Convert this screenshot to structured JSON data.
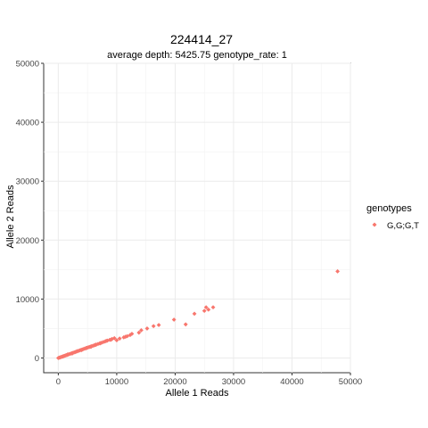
{
  "chart_data": {
    "type": "scatter",
    "title": "224414_27",
    "subtitle": "average depth:  5425.75  genotype_rate:  1",
    "xlabel": "Allele 1 Reads",
    "ylabel": "Allele 2 Reads",
    "xlim": [
      -2500,
      50000
    ],
    "ylim": [
      -2500,
      50000
    ],
    "x_ticks": [
      "0",
      "10000",
      "20000",
      "30000",
      "40000",
      "50000"
    ],
    "y_ticks": [
      "0",
      "10000",
      "20000",
      "30000",
      "40000",
      "50000"
    ],
    "grid": true,
    "legend": {
      "title": "genotypes",
      "position": "right",
      "entries": [
        "G,G;G,T"
      ]
    },
    "series": [
      {
        "name": "G,G;G,T",
        "color": "#F8766D",
        "points": [
          [
            0,
            0
          ],
          [
            150,
            50
          ],
          [
            300,
            100
          ],
          [
            450,
            150
          ],
          [
            600,
            200
          ],
          [
            750,
            260
          ],
          [
            900,
            310
          ],
          [
            1050,
            360
          ],
          [
            1200,
            420
          ],
          [
            1350,
            470
          ],
          [
            1500,
            520
          ],
          [
            1700,
            590
          ],
          [
            1900,
            660
          ],
          [
            2100,
            730
          ],
          [
            2300,
            800
          ],
          [
            2500,
            870
          ],
          [
            2700,
            940
          ],
          [
            2900,
            1010
          ],
          [
            3100,
            1080
          ],
          [
            3300,
            1150
          ],
          [
            3500,
            1230
          ],
          [
            3700,
            1300
          ],
          [
            3900,
            1370
          ],
          [
            4100,
            1440
          ],
          [
            4300,
            1510
          ],
          [
            4500,
            1580
          ],
          [
            4700,
            1650
          ],
          [
            4900,
            1720
          ],
          [
            5100,
            1790
          ],
          [
            5300,
            1860
          ],
          [
            5500,
            1930
          ],
          [
            5700,
            2000
          ],
          [
            5900,
            2060
          ],
          [
            6100,
            2130
          ],
          [
            6300,
            2200
          ],
          [
            6500,
            2270
          ],
          [
            6800,
            2380
          ],
          [
            7100,
            2480
          ],
          [
            7400,
            2590
          ],
          [
            7700,
            2700
          ],
          [
            8000,
            2800
          ],
          [
            8400,
            2950
          ],
          [
            8800,
            3080
          ],
          [
            9200,
            3220
          ],
          [
            9600,
            3360
          ],
          [
            10000,
            3000
          ],
          [
            10500,
            3300
          ],
          [
            11200,
            3500
          ],
          [
            11800,
            3700
          ],
          [
            12300,
            3900
          ],
          [
            12600,
            4100
          ],
          [
            13800,
            4300
          ],
          [
            14200,
            4700
          ],
          [
            15200,
            5000
          ],
          [
            16300,
            5400
          ],
          [
            17200,
            5600
          ],
          [
            19800,
            6500
          ],
          [
            21800,
            5700
          ],
          [
            23300,
            7500
          ],
          [
            25000,
            8000
          ],
          [
            25300,
            8600
          ],
          [
            25700,
            8200
          ],
          [
            26500,
            8600
          ],
          [
            47800,
            14700
          ],
          [
            800,
            250
          ],
          [
            1600,
            600
          ],
          [
            2400,
            780
          ],
          [
            3200,
            1150
          ],
          [
            4000,
            1350
          ],
          [
            4800,
            1700
          ],
          [
            5600,
            1900
          ],
          [
            6400,
            2250
          ],
          [
            7200,
            2500
          ],
          [
            8200,
            2900
          ],
          [
            9000,
            3100
          ],
          [
            11500,
            3600
          ]
        ]
      }
    ]
  }
}
